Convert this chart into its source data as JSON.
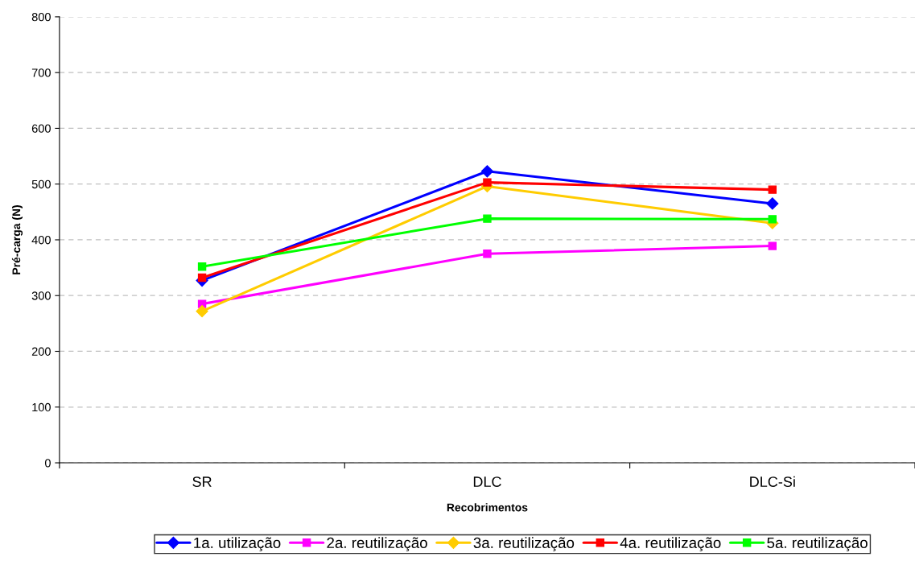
{
  "chart_data": {
    "type": "line",
    "xlabel": "Recobrimentos",
    "ylabel": "Pré-carga (N)",
    "categories": [
      "SR",
      "DLC",
      "DLC-Si"
    ],
    "ylim": [
      0,
      800
    ],
    "yticks": [
      0,
      100,
      200,
      300,
      400,
      500,
      600,
      700,
      800
    ],
    "grid": "y",
    "legend": "bottom",
    "line_style": "solid",
    "series": [
      {
        "name": "1a. utilização",
        "color": "#0000ff",
        "marker": "diamond",
        "values": [
          327,
          523,
          465
        ]
      },
      {
        "name": "2a. reutilização",
        "color": "#ff00ff",
        "marker": "square",
        "values": [
          285,
          375,
          389
        ]
      },
      {
        "name": "3a. reutilização",
        "color": "#ffcc00",
        "marker": "diamond",
        "values": [
          272,
          496,
          430
        ]
      },
      {
        "name": "4a. reutilização",
        "color": "#ff0000",
        "marker": "square",
        "values": [
          332,
          503,
          490
        ]
      },
      {
        "name": "5a. reutilização",
        "color": "#00ff00",
        "marker": "square",
        "values": [
          352,
          438,
          437
        ]
      }
    ]
  }
}
